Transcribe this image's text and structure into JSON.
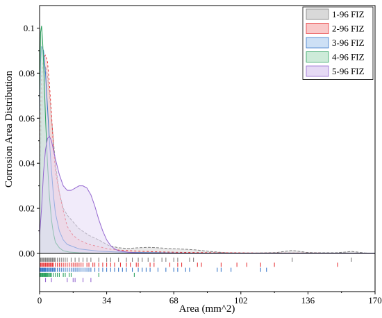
{
  "chart_data": {
    "type": "area",
    "title": "",
    "xlabel": "Area (mm^2)",
    "ylabel": "Corrosion Area Distribution",
    "xlim": [
      0,
      170
    ],
    "ylim": [
      0,
      0.11
    ],
    "x_ticks": [
      0,
      34,
      68,
      102,
      136,
      170
    ],
    "y_ticks": [
      0.0,
      0.02,
      0.04,
      0.06,
      0.08,
      0.1
    ],
    "y_tick_labels": [
      "0.00",
      "0.02",
      "0.04",
      "0.06",
      "0.08",
      "0.1"
    ],
    "grid": false,
    "legend_position": "top-right",
    "series": [
      {
        "name": "1-96 FIZ",
        "color": "#7f7f7f",
        "fill": "#d9d9d9",
        "x": [
          0,
          1,
          2,
          3,
          4,
          5,
          6,
          7,
          8,
          10,
          12,
          14,
          17,
          20,
          25,
          30,
          35,
          40,
          45,
          50,
          55,
          60,
          65,
          70,
          75,
          80,
          85,
          90,
          95,
          100,
          110,
          120,
          125,
          128,
          131,
          135,
          140,
          150,
          155,
          158,
          161,
          165,
          170
        ],
        "y": [
          0.03,
          0.06,
          0.077,
          0.083,
          0.079,
          0.071,
          0.06,
          0.05,
          0.04,
          0.027,
          0.02,
          0.017,
          0.014,
          0.011,
          0.008,
          0.006,
          0.0035,
          0.0025,
          0.0022,
          0.0025,
          0.0027,
          0.0025,
          0.0022,
          0.002,
          0.0018,
          0.0015,
          0.001,
          0.0006,
          0.0003,
          0.0002,
          0.0002,
          0.0004,
          0.001,
          0.0013,
          0.001,
          0.0005,
          0.0003,
          0.0003,
          0.0006,
          0.0009,
          0.0006,
          0.0002,
          0.0001
        ]
      },
      {
        "name": "2-96 FIZ",
        "color": "#e8373a",
        "fill": "#f9c9c9",
        "x": [
          0,
          1,
          2,
          3,
          4,
          5,
          6,
          7,
          8,
          10,
          12,
          14,
          17,
          20,
          25,
          30,
          35,
          40,
          50,
          60,
          70,
          80,
          90,
          100,
          110,
          120,
          130,
          140,
          150,
          170
        ],
        "y": [
          0.045,
          0.078,
          0.087,
          0.088,
          0.085,
          0.075,
          0.062,
          0.048,
          0.037,
          0.027,
          0.019,
          0.012,
          0.008,
          0.006,
          0.004,
          0.003,
          0.002,
          0.0015,
          0.001,
          0.0007,
          0.0005,
          0.0004,
          0.0003,
          0.0003,
          0.0002,
          0.0002,
          0.0002,
          0.0002,
          0.0001,
          0.0001
        ]
      },
      {
        "name": "3-96 FIZ",
        "color": "#3a78c9",
        "fill": "#cde0f5",
        "x": [
          0,
          0.5,
          1,
          2,
          3,
          4,
          5,
          6,
          7,
          8,
          10,
          12,
          14,
          17,
          20,
          25,
          30,
          35,
          40,
          50,
          60,
          70,
          80,
          90,
          100,
          170
        ],
        "y": [
          0.06,
          0.085,
          0.092,
          0.09,
          0.08,
          0.065,
          0.05,
          0.037,
          0.026,
          0.018,
          0.01,
          0.006,
          0.004,
          0.003,
          0.002,
          0.0015,
          0.001,
          0.0008,
          0.0006,
          0.0004,
          0.0003,
          0.0002,
          0.0001,
          0.0001,
          0.0001,
          0.0001
        ]
      },
      {
        "name": "4-96 FIZ",
        "color": "#2ca25f",
        "fill": "#cdebd9",
        "x": [
          0,
          0.5,
          1,
          1.5,
          2,
          3,
          4,
          5,
          6,
          7,
          8,
          10,
          12,
          15,
          20,
          30,
          40,
          60,
          80,
          170
        ],
        "y": [
          0.07,
          0.098,
          0.101,
          0.095,
          0.085,
          0.06,
          0.04,
          0.025,
          0.015,
          0.009,
          0.005,
          0.0025,
          0.0012,
          0.0006,
          0.0003,
          0.0001,
          0.0001,
          0.0001,
          0.0001,
          0.0001
        ]
      },
      {
        "name": "5-96 FIZ",
        "color": "#9467d0",
        "fill": "#e6daf5",
        "x": [
          0,
          1,
          2,
          3,
          4,
          5,
          6,
          7,
          8,
          10,
          12,
          14,
          16,
          18,
          20,
          22,
          24,
          26,
          28,
          30,
          32,
          34,
          36,
          38,
          40,
          45,
          50,
          55,
          60,
          70,
          170
        ],
        "y": [
          0.008,
          0.02,
          0.036,
          0.046,
          0.051,
          0.052,
          0.05,
          0.046,
          0.042,
          0.035,
          0.03,
          0.028,
          0.028,
          0.029,
          0.03,
          0.03,
          0.029,
          0.026,
          0.021,
          0.015,
          0.01,
          0.006,
          0.0035,
          0.002,
          0.0012,
          0.0005,
          0.0002,
          0.0001,
          0.0001,
          0.0001,
          0.0001
        ]
      }
    ],
    "rug": [
      {
        "series": "1-96 FIZ",
        "x": [
          0.5,
          1,
          1.5,
          2,
          2.5,
          3,
          3.5,
          4,
          4.5,
          5,
          5.5,
          6,
          6.5,
          7,
          7.5,
          8,
          9,
          10,
          11,
          12,
          13,
          14,
          16,
          18,
          20,
          22,
          24,
          26,
          30,
          34,
          36,
          40,
          44,
          47,
          50,
          52,
          55,
          58,
          62,
          64,
          68,
          70,
          76,
          78,
          128,
          158
        ]
      },
      {
        "series": "2-96 FIZ",
        "x": [
          0.5,
          1,
          1.5,
          2,
          2.5,
          3,
          3.5,
          4,
          4.5,
          5,
          5.5,
          6,
          6.5,
          7,
          8,
          9,
          10,
          11,
          12,
          13,
          14,
          15,
          16,
          17,
          18,
          19,
          20,
          21,
          22,
          24,
          25,
          27,
          28,
          30,
          32,
          34,
          36,
          38,
          41,
          44,
          46,
          49,
          50,
          56,
          58,
          66,
          70,
          72,
          80,
          82,
          92,
          100,
          105,
          112,
          119,
          151
        ]
      },
      {
        "series": "3-96 FIZ",
        "x": [
          0.3,
          0.6,
          1,
          1.3,
          1.6,
          2,
          2.3,
          2.6,
          3,
          3.5,
          4,
          4.5,
          5,
          5.5,
          6,
          6.5,
          7,
          7.5,
          8,
          9,
          10,
          11,
          12,
          13,
          14,
          15,
          16,
          17,
          18,
          19,
          20,
          21,
          22,
          23,
          24,
          25,
          26,
          28,
          30,
          32,
          34,
          36,
          38,
          40,
          42,
          44,
          47,
          50,
          52,
          54,
          56,
          60,
          64,
          68,
          70,
          74,
          76,
          90,
          92,
          97,
          112,
          115
        ]
      },
      {
        "series": "4-96 FIZ",
        "x": [
          0.3,
          0.6,
          1,
          1.3,
          1.6,
          2,
          2.3,
          2.6,
          3,
          3.3,
          3.6,
          4,
          4.5,
          5,
          5.5,
          6,
          7,
          8,
          9,
          10,
          12,
          13,
          15,
          16,
          30,
          48
        ]
      },
      {
        "series": "5-96 FIZ",
        "x": [
          3,
          6,
          14,
          17,
          18,
          22,
          26
        ]
      }
    ]
  }
}
